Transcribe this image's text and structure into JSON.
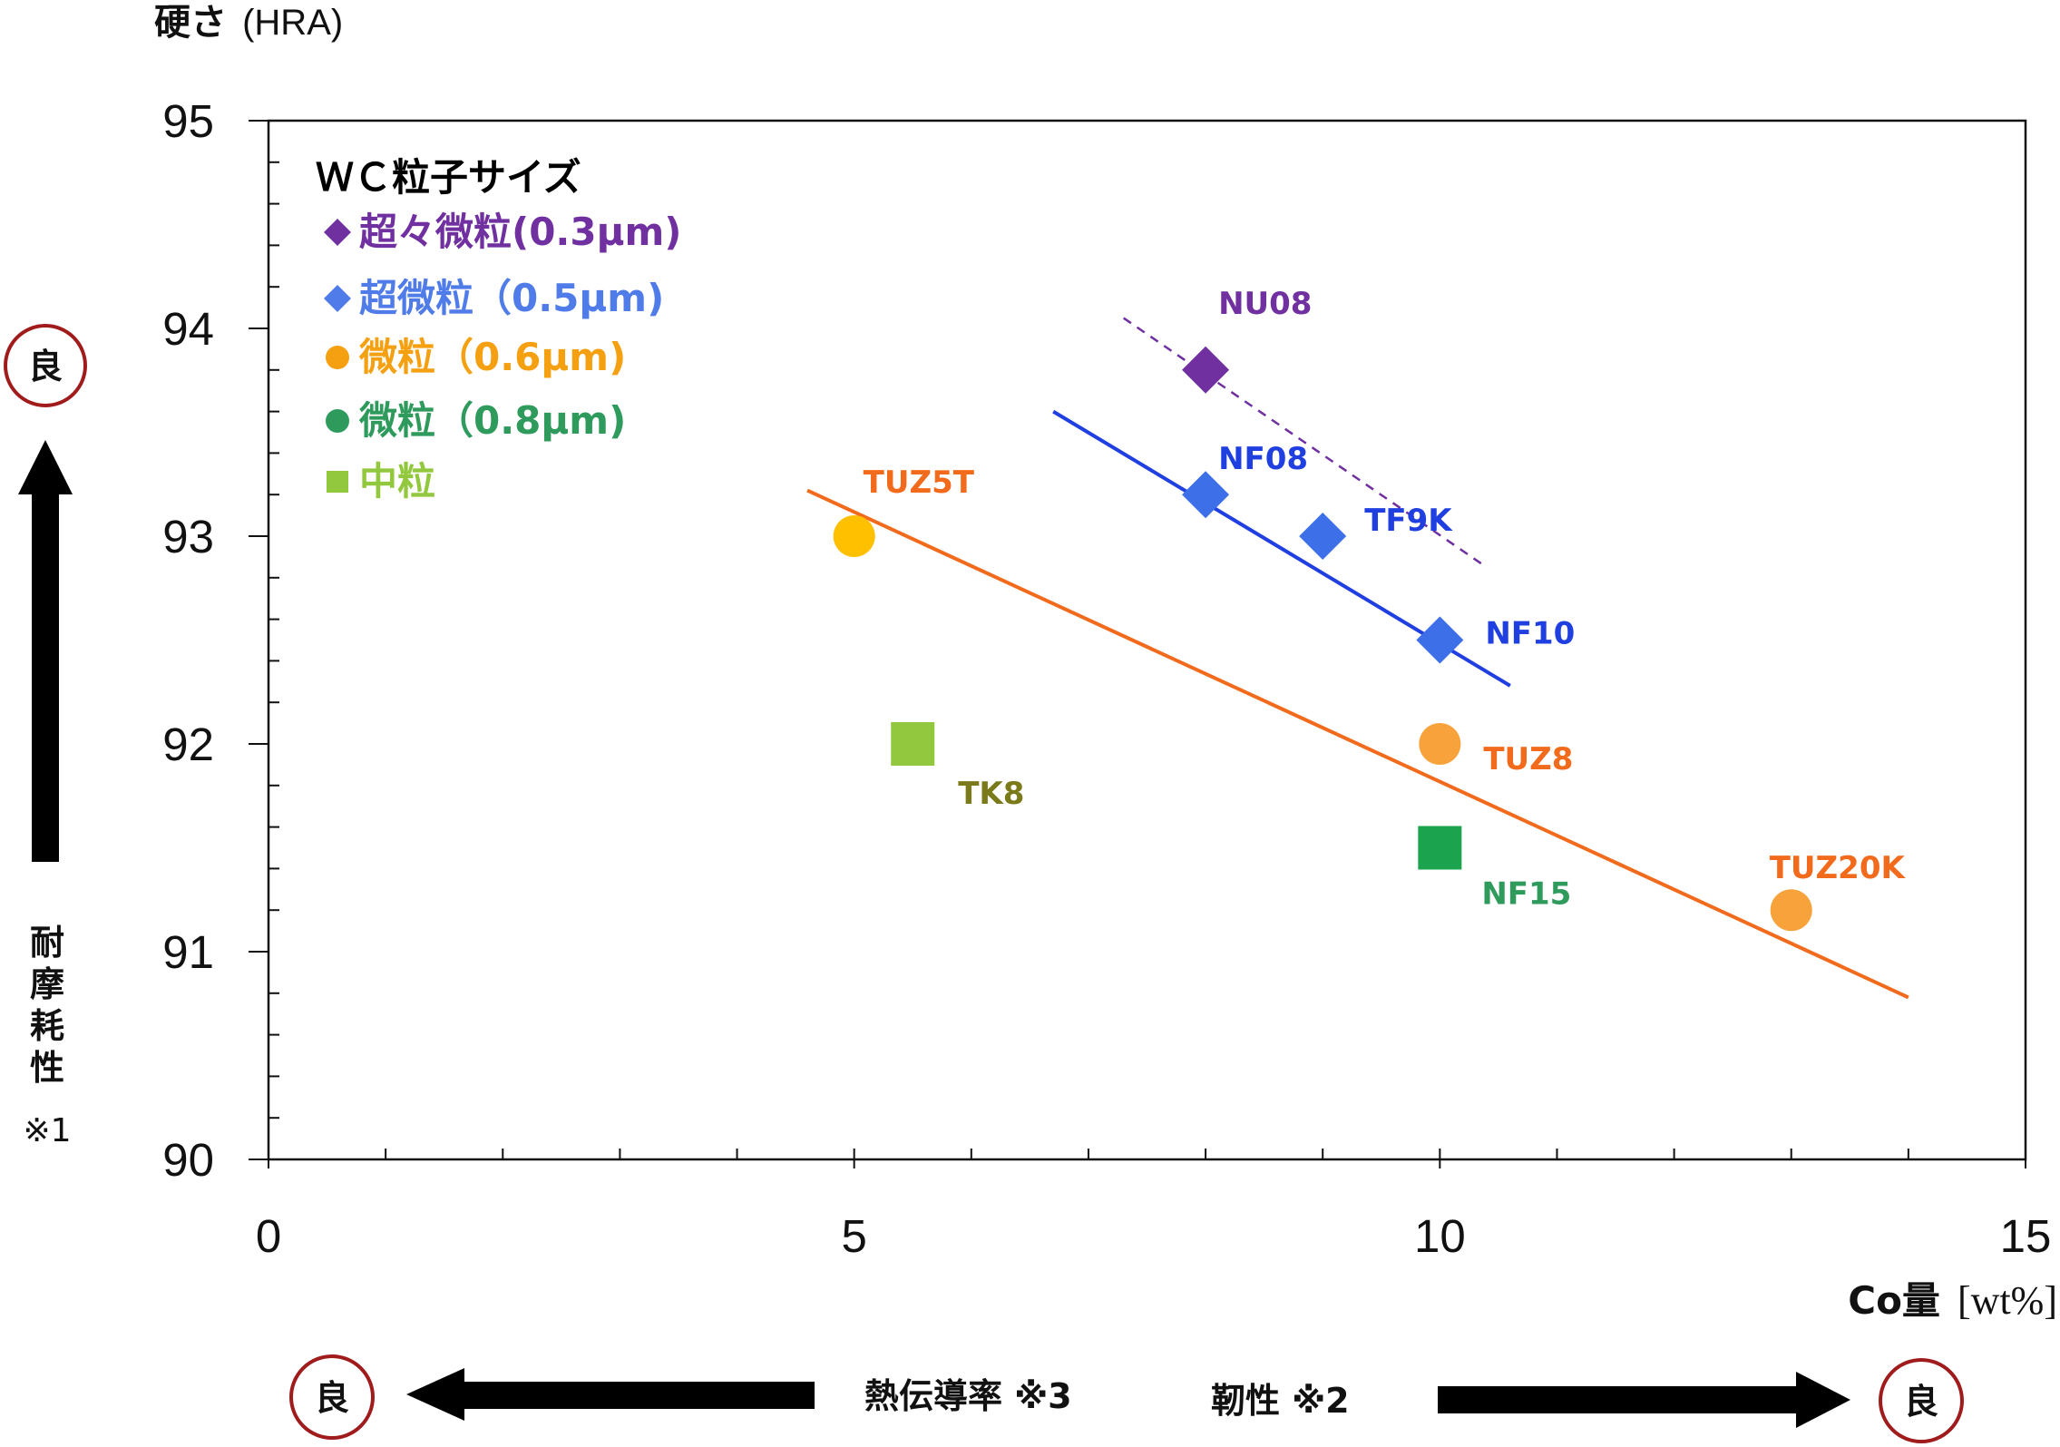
{
  "chart_data": {
    "type": "scatter",
    "ylabel": "硬さ",
    "ylabel_unit": "(HRA)",
    "xlabel": "Co量",
    "xlabel_unit": "[wt%]",
    "xlim": [
      0,
      15
    ],
    "ylim": [
      90,
      95
    ],
    "x_ticks": [
      0,
      5,
      10,
      15
    ],
    "y_ticks": [
      90,
      91,
      92,
      93,
      94,
      95
    ],
    "x_minor_step": 1,
    "y_minor_step": 0.2,
    "grid": false,
    "legend_position": "top-left",
    "legend": {
      "title": "ＷＣ粒子サイズ",
      "entries": [
        {
          "marker": "diamond",
          "label": "超々微粒(0.3μm)",
          "color": "#7030A0"
        },
        {
          "marker": "diamond",
          "label": "超微粒（0.5μm)",
          "color": "#4F7CE8"
        },
        {
          "marker": "circle",
          "label": "微粒（0.6μm)",
          "color": "#F5A011"
        },
        {
          "marker": "circle",
          "label": "微粒（0.8μm)",
          "color": "#2E9A5C"
        },
        {
          "marker": "square",
          "label": "中粒",
          "color": "#92C83E"
        }
      ]
    },
    "points": [
      {
        "label": "NU08",
        "x": 8,
        "y": 93.8,
        "marker": "diamond",
        "color": "#7030A0",
        "label_color": "#7030A0"
      },
      {
        "label": "NF08",
        "x": 8,
        "y": 93.2,
        "marker": "diamond",
        "color": "#3D6FE8",
        "label_color": "#1F3FE0"
      },
      {
        "label": "TF9K",
        "x": 9,
        "y": 93.0,
        "marker": "diamond",
        "color": "#3D6FE8",
        "label_color": "#1F3FE0"
      },
      {
        "label": "NF10",
        "x": 10,
        "y": 92.5,
        "marker": "diamond",
        "color": "#3D6FE8",
        "label_color": "#1F3FE0"
      },
      {
        "label": "TUZ5T",
        "x": 5,
        "y": 93.0,
        "marker": "circle",
        "color": "#FFC000",
        "label_color": "#F26B1D"
      },
      {
        "label": "TUZ8",
        "x": 10,
        "y": 92.0,
        "marker": "circle",
        "color": "#F7A23A",
        "label_color": "#F26B1D"
      },
      {
        "label": "TUZ20K",
        "x": 13,
        "y": 91.2,
        "marker": "circle",
        "color": "#F7A23A",
        "label_color": "#F26B1D"
      },
      {
        "label": "TK8",
        "x": 5.5,
        "y": 92.0,
        "marker": "square",
        "color": "#92C83E",
        "label_color": "#7A7A1A"
      },
      {
        "label": "NF15",
        "x": 10,
        "y": 91.5,
        "marker": "square",
        "color": "#1BA34E",
        "label_color": "#2E9A5C"
      }
    ],
    "trend_lines": [
      {
        "name": "",
        "from": [
          7.3,
          94.05
        ],
        "to": [
          10.4,
          92.85
        ],
        "color": "#7030A0",
        "style": "dashed"
      },
      {
        "name": "",
        "from": [
          6.7,
          93.6
        ],
        "to": [
          10.6,
          92.28
        ],
        "color": "#1F3FE0",
        "style": "solid"
      },
      {
        "name": "",
        "from": [
          4.6,
          93.22
        ],
        "to": [
          14.0,
          90.78
        ],
        "color": "#F26B1D",
        "style": "solid"
      }
    ]
  },
  "annotations": {
    "y_side_good": "良",
    "y_side_text": [
      "耐",
      "摩",
      "耗",
      "性"
    ],
    "y_side_note": "※1",
    "x_left_good": "良",
    "x_left_text": "熱伝導率 ※3",
    "x_right_text": "靭性 ※2",
    "x_right_good": "良"
  },
  "colors": {
    "axis": "#111111",
    "good_circle": "#A01C1C",
    "arrow": "#000000"
  }
}
